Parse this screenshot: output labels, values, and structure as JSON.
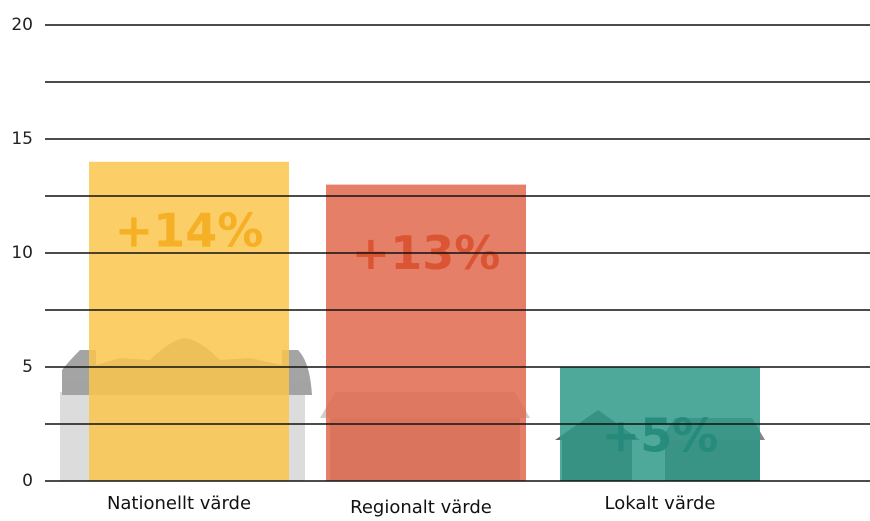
{
  "chart_data": {
    "type": "bar",
    "categories": [
      "Nationellt värde",
      "Regionalt värde",
      "Lokalt värde"
    ],
    "values": [
      14,
      13,
      5
    ],
    "value_labels": [
      "+14%",
      "+13%",
      "+5%"
    ],
    "colors": [
      "#fbc64e",
      "#e2694c",
      "#2f9a89"
    ],
    "label_colors": [
      "#f4ad1e",
      "#d9512f",
      "#23897a"
    ],
    "ylim": [
      0,
      20
    ],
    "yticks": [
      0,
      5,
      10,
      15,
      20
    ],
    "minor_yticks": [
      2.5,
      7.5,
      12.5,
      17.5
    ],
    "grid": true
  }
}
